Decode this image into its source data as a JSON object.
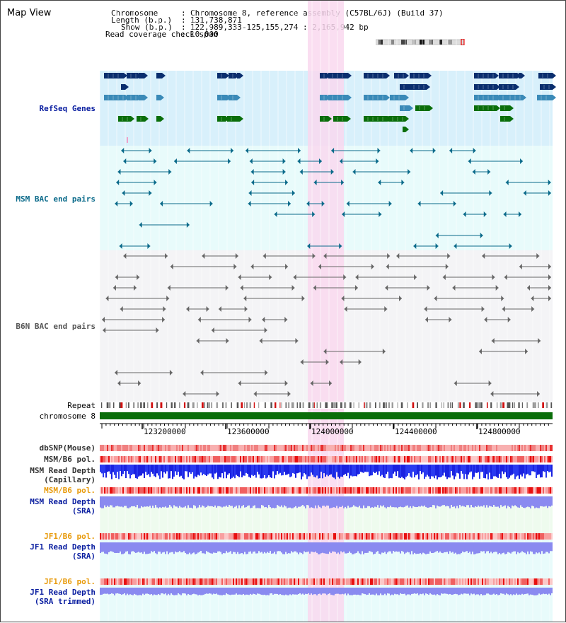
{
  "title": "Map View",
  "header": {
    "chromosome_label": "Chromosome",
    "chromosome_value": "Chromosome 8, reference assembly (C57BL/6J) (Build 37)",
    "length_label": "Length (b.p.)",
    "length_value": "131,738,871",
    "show_label": "Show (b.p.)",
    "show_value": "122,989,333-125,155,274 : 2,165,942 bp",
    "coverage_label": "Read coverage check span",
    "coverage_value": "10,000"
  },
  "tracks": {
    "refseq": "RefSeq Genes",
    "msm_bac": "MSM BAC end pairs",
    "b6n_bac": "B6N BAC end pairs",
    "repeat": "Repeat",
    "chromosome": "chromosome 8"
  },
  "ruler": {
    "ticks": [
      "123200000",
      "123600000",
      "124000000",
      "124400000",
      "124800000"
    ]
  },
  "lower_tracks": {
    "dbsnp": "dbSNP(Mouse)",
    "msm_b6_pol_1": "MSM/B6 pol.",
    "msm_read_depth_cap_1": "MSM Read Depth",
    "msm_read_depth_cap_2": "(Capillary)",
    "msm_b6_pol_2": "MSM/B6 pol.",
    "msm_read_depth_sra_1": "MSM Read Depth",
    "msm_read_depth_sra_2": "(SRA)",
    "jf1_b6_pol_1": "JF1/B6 pol.",
    "jf1_read_depth_1": "JF1 Read Depth",
    "jf1_read_depth_2": "(SRA)",
    "jf1_b6_pol_2": "JF1/B6 pol.",
    "jf1_read_depth_trim_1": "JF1 Read Depth",
    "jf1_read_depth_trim_2": "(SRA trimmed)"
  },
  "colors": {
    "refseq_bg": "#d8f0fb",
    "msm_bac_bg": "#e8fbfb",
    "b6n_bg": "#f4f4f6",
    "highlight": "#f9d8ef",
    "chromosome_bar": "#0a6e0a",
    "navy": "#0a2e6e",
    "teal": "#3a8ab8",
    "green": "#0a6e0a",
    "bac_line": "#0a6a8a",
    "b6n_line": "#666666",
    "label_blue": "#0a1ea0",
    "label_teal": "#0a6a8a",
    "label_orange": "#e89a0a",
    "label_dark": "#333333"
  }
}
